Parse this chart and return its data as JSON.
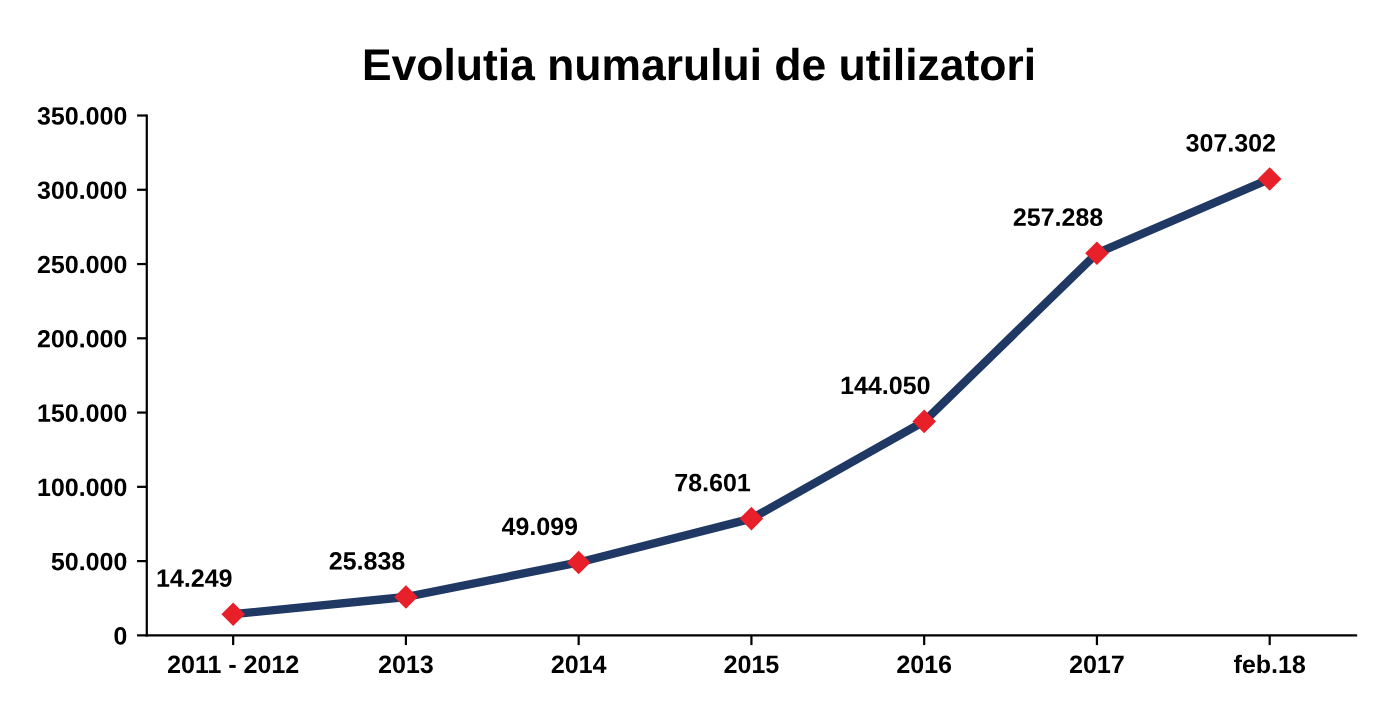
{
  "chart_data": {
    "type": "line",
    "title": "Evolutia numarului de utilizatori",
    "categories": [
      "2011 - 2012",
      "2013",
      "2014",
      "2015",
      "2016",
      "2017",
      "feb.18"
    ],
    "series": [
      {
        "color": "#1f3864",
        "values": [
          14249,
          25838,
          49099,
          78601,
          144050,
          257288,
          307302
        ],
        "value_labels": [
          "14.249",
          "25.838",
          "49.099",
          "78.601",
          "144.050",
          "257.288",
          "307.302"
        ]
      }
    ],
    "marker": "diamond",
    "line_style": "solid",
    "grid": false,
    "ylim": [
      0,
      350000
    ],
    "yticks": [
      {
        "value": 0,
        "label": "0"
      },
      {
        "value": 50000,
        "label": "50.000"
      },
      {
        "value": 100000,
        "label": "100.000"
      },
      {
        "value": 150000,
        "label": "150.000"
      },
      {
        "value": 200000,
        "label": "200.000"
      },
      {
        "value": 250000,
        "label": "250.000"
      },
      {
        "value": 300000,
        "label": "300.000"
      },
      {
        "value": 350000,
        "label": "350.000"
      }
    ]
  }
}
